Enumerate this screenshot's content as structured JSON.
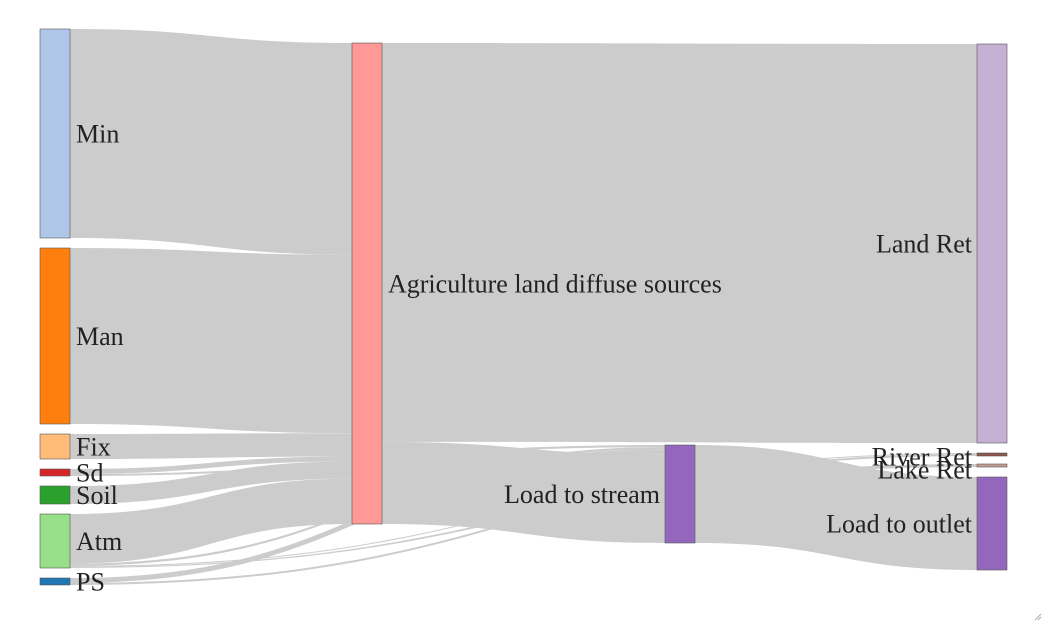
{
  "diagram": {
    "type": "sankey",
    "nodes": [
      {
        "id": "min",
        "label": "Min",
        "color": "#aec7e8"
      },
      {
        "id": "man",
        "label": "Man",
        "color": "#ff7f0e"
      },
      {
        "id": "fix",
        "label": "Fix",
        "color": "#ffbb78"
      },
      {
        "id": "sd",
        "label": "Sd",
        "color": "#d62728"
      },
      {
        "id": "soil",
        "label": "Soil",
        "color": "#2ca02c"
      },
      {
        "id": "atm",
        "label": "Atm",
        "color": "#98df8a"
      },
      {
        "id": "ps",
        "label": "PS",
        "color": "#1f77b4"
      },
      {
        "id": "agri",
        "label": "Agriculture land diffuse sources",
        "color": "#ff9896"
      },
      {
        "id": "stream",
        "label": "Load to stream",
        "color": "#9467bd"
      },
      {
        "id": "landret",
        "label": "Land Ret",
        "color": "#c5b0d5"
      },
      {
        "id": "riverret",
        "label": "River Ret",
        "color": "#8c564b"
      },
      {
        "id": "lakeret",
        "label": "Lake Ret",
        "color": "#c49c94"
      },
      {
        "id": "outlet",
        "label": "Load to outlet",
        "color": "#9467bd"
      }
    ],
    "links": [
      {
        "source": "min",
        "target": "agri",
        "value": 210
      },
      {
        "source": "man",
        "target": "agri",
        "value": 177
      },
      {
        "source": "fix",
        "target": "agri",
        "value": 23
      },
      {
        "source": "sd",
        "target": "agri",
        "value": 5
      },
      {
        "source": "sd",
        "target": "stream",
        "value": 2
      },
      {
        "source": "soil",
        "target": "agri",
        "value": 17
      },
      {
        "source": "atm",
        "target": "agri",
        "value": 45
      },
      {
        "source": "atm",
        "target": "stream",
        "value": 2
      },
      {
        "source": "atm",
        "target": "riverret",
        "value": 1
      },
      {
        "source": "atm",
        "target": "lakeret",
        "value": 1
      },
      {
        "source": "ps",
        "target": "stream",
        "value": 5
      },
      {
        "source": "ps",
        "target": "riverret",
        "value": 2
      },
      {
        "source": "agri",
        "target": "landret",
        "value": 398
      },
      {
        "source": "agri",
        "target": "stream",
        "value": 82
      },
      {
        "source": "stream",
        "target": "outlet",
        "value": 92
      }
    ]
  },
  "colors": {
    "link": "#cccccc",
    "node_stroke": "#555555"
  }
}
